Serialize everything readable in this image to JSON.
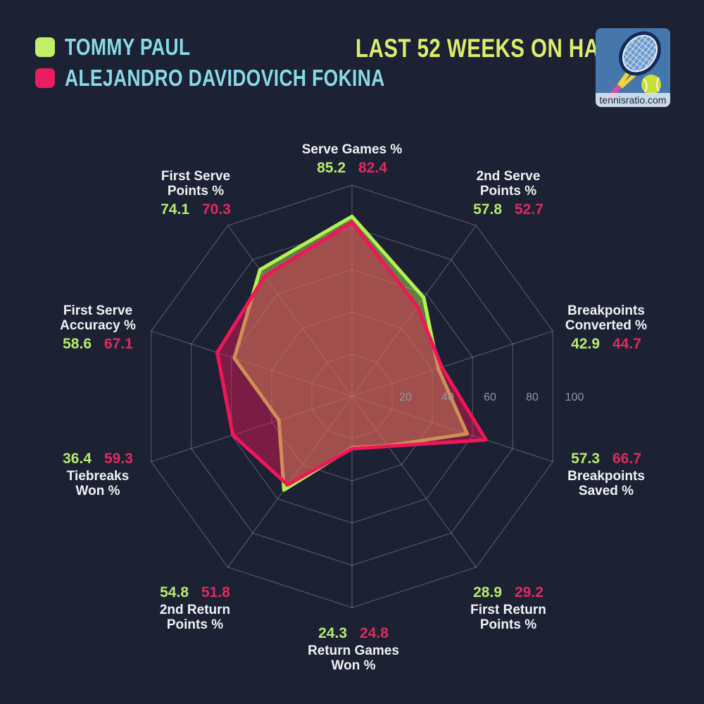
{
  "header": {
    "title": "LAST 52 WEEKS ON HARD",
    "legend": [
      {
        "name": "TOMMY PAUL",
        "swatch_color": "#c3ef68"
      },
      {
        "name": "ALEJANDRO DAVIDOVICH FOKINA",
        "swatch_color": "#e91d5f"
      }
    ],
    "logo_text": "tennisratio.com"
  },
  "colors": {
    "background": "#1c2134",
    "legend_name": "#87dbe6",
    "title": "#dcee69",
    "grid": "rgba(255,255,255,0.28)",
    "tick": "#9097ad",
    "axis_label": "#f2f2f4"
  },
  "chart_data": {
    "type": "radar",
    "axis_range": [
      0,
      100
    ],
    "axis_ticks": [
      20,
      40,
      60,
      80,
      100
    ],
    "grid": true,
    "legend_position": "top-left",
    "categories": [
      {
        "label_lines": [
          "Serve Games %"
        ]
      },
      {
        "label_lines": [
          "2nd Serve",
          "Points %"
        ]
      },
      {
        "label_lines": [
          "Breakpoints",
          "Converted %"
        ]
      },
      {
        "label_lines": [
          "Breakpoints",
          "Saved %"
        ]
      },
      {
        "label_lines": [
          "First Return",
          "Points %"
        ]
      },
      {
        "label_lines": [
          "Return Games",
          "Won %"
        ]
      },
      {
        "label_lines": [
          "2nd Return",
          "Points %"
        ]
      },
      {
        "label_lines": [
          "Tiebreaks",
          "Won %"
        ]
      },
      {
        "label_lines": [
          "First Serve",
          "Accuracy %"
        ]
      },
      {
        "label_lines": [
          "First Serve",
          "Points %"
        ]
      }
    ],
    "series": [
      {
        "name": "TOMMY PAUL",
        "stroke_color": "#b4f152",
        "value_text_color": "#b7eb6d",
        "fill_opacity": 0.45,
        "values": [
          85.2,
          57.8,
          42.9,
          57.3,
          28.9,
          24.3,
          54.8,
          36.4,
          58.6,
          74.1
        ]
      },
      {
        "name": "ALEJANDRO DAVIDOVICH FOKINA",
        "stroke_color": "#f0165a",
        "value_text_color": "#e02a5f",
        "fill_opacity": 0.45,
        "values": [
          82.4,
          52.7,
          44.7,
          66.7,
          29.2,
          24.8,
          51.8,
          59.3,
          67.1,
          70.3
        ]
      }
    ]
  }
}
